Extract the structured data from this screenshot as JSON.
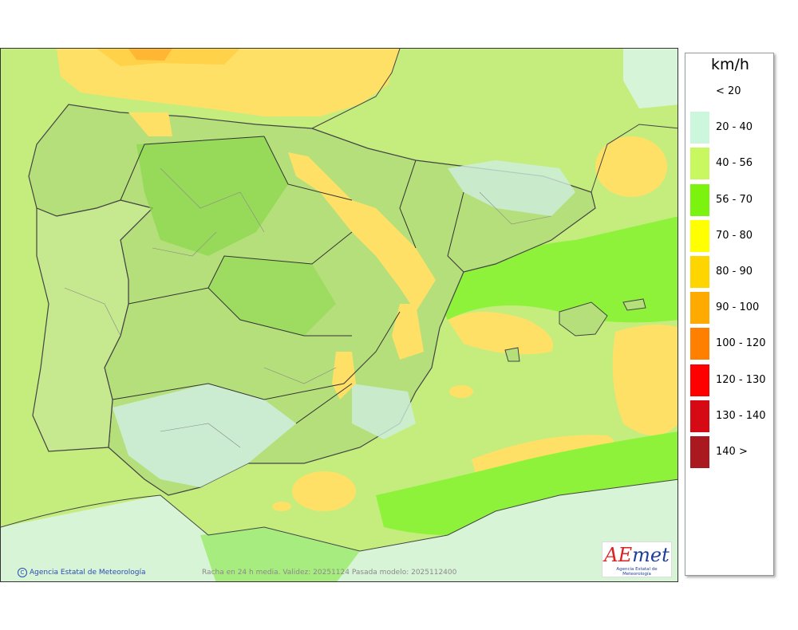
{
  "legend": {
    "unit": "km/h",
    "items": [
      {
        "label": "< 20",
        "color": "#ffffff"
      },
      {
        "label": "20 - 40",
        "color": "#cdf7dc"
      },
      {
        "label": "40 - 56",
        "color": "#c8f760"
      },
      {
        "label": "56 - 70",
        "color": "#7cf20f"
      },
      {
        "label": "70 - 80",
        "color": "#ffff00"
      },
      {
        "label": "80 - 90",
        "color": "#ffd500"
      },
      {
        "label": "90 - 100",
        "color": "#ffaa00"
      },
      {
        "label": "100 - 120",
        "color": "#ff8000"
      },
      {
        "label": "120 - 130",
        "color": "#ff0000"
      },
      {
        "label": "130 - 140",
        "color": "#d50a14"
      },
      {
        "label": "140 >",
        "color": "#aa1820"
      }
    ]
  },
  "footer": {
    "credit": "Agencia Estatal de Meteorología",
    "validity": "Racha en 24 h media. Validez: 20251124 Pasada modelo: 2025112400"
  },
  "logo": {
    "wordmark_ae": "AE",
    "wordmark_rest": "met",
    "subtitle": "Agencia Estatal de Meteorología"
  }
}
